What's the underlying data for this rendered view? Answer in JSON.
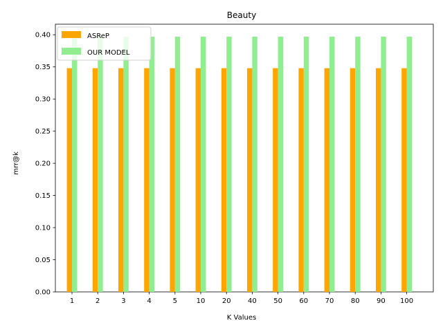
{
  "chart_data": {
    "type": "bar",
    "title": "Beauty",
    "xlabel": "K Values",
    "ylabel": "mrr@k",
    "categories": [
      "1",
      "2",
      "3",
      "4",
      "5",
      "10",
      "20",
      "40",
      "50",
      "60",
      "70",
      "80",
      "90",
      "100"
    ],
    "series": [
      {
        "name": "ASReP",
        "color": "#ffa500",
        "values": [
          0.348,
          0.348,
          0.348,
          0.348,
          0.348,
          0.348,
          0.348,
          0.348,
          0.348,
          0.348,
          0.348,
          0.348,
          0.348,
          0.348
        ]
      },
      {
        "name": "OUR MODEL",
        "color": "#90ee90",
        "values": [
          0.397,
          0.397,
          0.397,
          0.397,
          0.397,
          0.397,
          0.397,
          0.397,
          0.397,
          0.397,
          0.397,
          0.397,
          0.397,
          0.397
        ]
      }
    ],
    "ylim": [
      0,
      0.4164
    ],
    "yticks": [
      "0.00",
      "0.05",
      "0.10",
      "0.15",
      "0.20",
      "0.25",
      "0.30",
      "0.35",
      "0.40"
    ],
    "grid": false,
    "legend_position": "top-left"
  }
}
